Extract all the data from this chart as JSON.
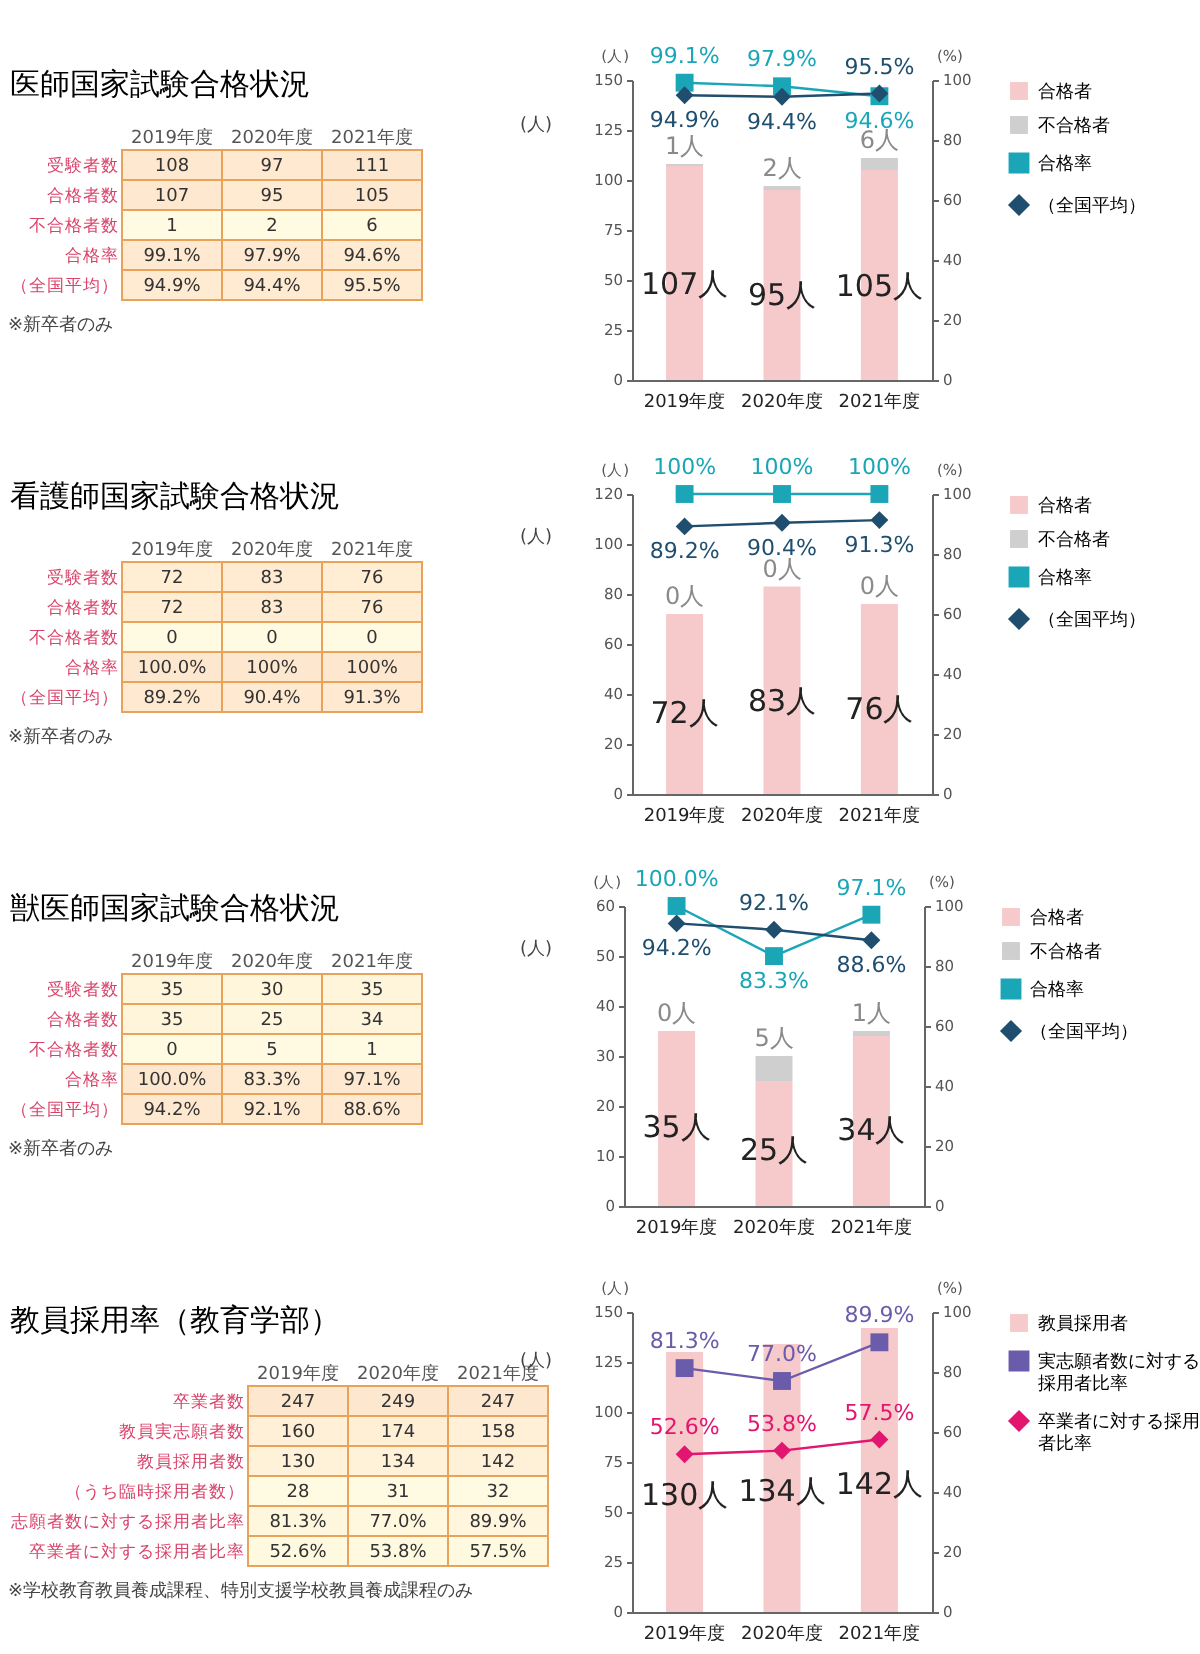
{
  "chart_data": [
    {
      "type": "heatmap",
      "title": "医師国家試験合格状況",
      "categories": [
        "2019年度",
        "2020年度",
        "2021年度"
      ],
      "y_categories": [
        "受験者数",
        "合格者数",
        "不合格者数",
        "合格率",
        "（全国平均）"
      ],
      "cells": [
        [
          108,
          97,
          111
        ],
        [
          107,
          95,
          105
        ],
        [
          1,
          2,
          6
        ],
        [
          99.1,
          97.9,
          94.6
        ],
        [
          94.9,
          94.4,
          95.5
        ]
      ],
      "cell_labels": [
        [
          "108",
          "97",
          "111"
        ],
        [
          "107",
          "95",
          "105"
        ],
        [
          "1",
          "2",
          "6"
        ],
        [
          "99.1%",
          "97.9%",
          "94.6%"
        ],
        [
          "94.9%",
          "94.4%",
          "95.5%"
        ]
      ],
      "annotations": [
        "(人)",
        "※新卒者のみ"
      ]
    },
    {
      "type": "bar",
      "stacked": true,
      "categories": [
        "2019年度",
        "2020年度",
        "2021年度"
      ],
      "ylabel": "(人)",
      "y2label": "(%)",
      "ylim": [
        0,
        150
      ],
      "yticks": [
        0,
        25,
        50,
        75,
        100,
        125,
        150
      ],
      "y2lim": [
        0,
        100
      ],
      "y2ticks": [
        0,
        20,
        40,
        60,
        80,
        100
      ],
      "legend": "right",
      "series": [
        {
          "name": "合格者",
          "type": "bar",
          "color": "#f6c9cb",
          "values": [
            107,
            95,
            105
          ],
          "value_labels": [
            "107人",
            "95人",
            "105人"
          ]
        },
        {
          "name": "不合格者",
          "type": "bar",
          "color": "#cfcfcf",
          "values": [
            1,
            2,
            6
          ],
          "value_labels": [
            "1人",
            "2人",
            "6人"
          ]
        },
        {
          "name": "合格率",
          "type": "line",
          "axis": "y2",
          "marker": "square",
          "color": "#1aa6b7",
          "values": [
            99.1,
            97.9,
            94.6
          ],
          "value_labels": [
            "99.1%",
            "97.9%",
            "94.6%"
          ]
        },
        {
          "name": "（全国平均）",
          "type": "line",
          "axis": "y2",
          "marker": "diamond",
          "color": "#1f4e6e",
          "values": [
            94.9,
            94.4,
            95.5
          ],
          "value_labels": [
            "94.9%",
            "94.4%",
            "95.5%"
          ]
        }
      ]
    },
    {
      "type": "heatmap",
      "title": "看護師国家試験合格状況",
      "categories": [
        "2019年度",
        "2020年度",
        "2021年度"
      ],
      "y_categories": [
        "受験者数",
        "合格者数",
        "不合格者数",
        "合格率",
        "（全国平均）"
      ],
      "cells": [
        [
          72,
          83,
          76
        ],
        [
          72,
          83,
          76
        ],
        [
          0,
          0,
          0
        ],
        [
          100,
          100,
          100
        ],
        [
          89.2,
          90.4,
          91.3
        ]
      ],
      "cell_labels": [
        [
          "72",
          "83",
          "76"
        ],
        [
          "72",
          "83",
          "76"
        ],
        [
          "0",
          "0",
          "0"
        ],
        [
          "100.0%",
          "100%",
          "100%"
        ],
        [
          "89.2%",
          "90.4%",
          "91.3%"
        ]
      ],
      "annotations": [
        "(人)",
        "※新卒者のみ"
      ]
    },
    {
      "type": "bar",
      "stacked": true,
      "categories": [
        "2019年度",
        "2020年度",
        "2021年度"
      ],
      "ylabel": "(人)",
      "y2label": "(%)",
      "ylim": [
        0,
        120
      ],
      "yticks": [
        0,
        20,
        40,
        60,
        80,
        100,
        120
      ],
      "y2lim": [
        0,
        100
      ],
      "y2ticks": [
        0,
        20,
        40,
        60,
        80,
        100
      ],
      "legend": "right",
      "series": [
        {
          "name": "合格者",
          "type": "bar",
          "color": "#f6c9cb",
          "values": [
            72,
            83,
            76
          ],
          "value_labels": [
            "72人",
            "83人",
            "76人"
          ]
        },
        {
          "name": "不合格者",
          "type": "bar",
          "color": "#cfcfcf",
          "values": [
            0,
            0,
            0
          ],
          "value_labels": [
            "0人",
            "0人",
            "0人"
          ]
        },
        {
          "name": "合格率",
          "type": "line",
          "axis": "y2",
          "marker": "square",
          "color": "#1aa6b7",
          "values": [
            100,
            100,
            100
          ],
          "value_labels": [
            "100%",
            "100%",
            "100%"
          ]
        },
        {
          "name": "（全国平均）",
          "type": "line",
          "axis": "y2",
          "marker": "diamond",
          "color": "#1f4e6e",
          "values": [
            89.2,
            90.4,
            91.3
          ],
          "value_labels": [
            "89.2%",
            "90.4%",
            "91.3%"
          ]
        }
      ]
    },
    {
      "type": "heatmap",
      "title": "獣医師国家試験合格状況",
      "categories": [
        "2019年度",
        "2020年度",
        "2021年度"
      ],
      "y_categories": [
        "受験者数",
        "合格者数",
        "不合格者数",
        "合格率",
        "（全国平均）"
      ],
      "cells": [
        [
          35,
          30,
          35
        ],
        [
          35,
          25,
          34
        ],
        [
          0,
          5,
          1
        ],
        [
          100,
          83.3,
          97.1
        ],
        [
          94.2,
          92.1,
          88.6
        ]
      ],
      "cell_labels": [
        [
          "35",
          "30",
          "35"
        ],
        [
          "35",
          "25",
          "34"
        ],
        [
          "0",
          "5",
          "1"
        ],
        [
          "100.0%",
          "83.3%",
          "97.1%"
        ],
        [
          "94.2%",
          "92.1%",
          "88.6%"
        ]
      ],
      "annotations": [
        "(人)",
        "※新卒者のみ"
      ]
    },
    {
      "type": "bar",
      "stacked": true,
      "categories": [
        "2019年度",
        "2020年度",
        "2021年度"
      ],
      "ylabel": "(人)",
      "y2label": "(%)",
      "ylim": [
        0,
        60
      ],
      "yticks": [
        0,
        10,
        20,
        30,
        40,
        50,
        60
      ],
      "y2lim": [
        0,
        100
      ],
      "y2ticks": [
        0,
        20,
        40,
        60,
        80,
        100
      ],
      "legend": "right",
      "series": [
        {
          "name": "合格者",
          "type": "bar",
          "color": "#f6c9cb",
          "values": [
            35,
            25,
            34
          ],
          "value_labels": [
            "35人",
            "25人",
            "34人"
          ]
        },
        {
          "name": "不合格者",
          "type": "bar",
          "color": "#cfcfcf",
          "values": [
            0,
            5,
            1
          ],
          "value_labels": [
            "0人",
            "5人",
            "1人"
          ]
        },
        {
          "name": "合格率",
          "type": "line",
          "axis": "y2",
          "marker": "square",
          "color": "#1aa6b7",
          "values": [
            100,
            83.3,
            97.1
          ],
          "value_labels": [
            "100.0%",
            "83.3%",
            "97.1%"
          ]
        },
        {
          "name": "（全国平均）",
          "type": "line",
          "axis": "y2",
          "marker": "diamond",
          "color": "#1f4e6e",
          "values": [
            94.2,
            92.1,
            88.6
          ],
          "value_labels": [
            "94.2%",
            "92.1%",
            "88.6%"
          ]
        }
      ]
    },
    {
      "type": "heatmap",
      "title": "教員採用率（教育学部）",
      "categories": [
        "2019年度",
        "2020年度",
        "2021年度"
      ],
      "y_categories": [
        "卒業者数",
        "教員実志願者数",
        "教員採用者数",
        "（うち臨時採用者数）",
        "志願者数に対する採用者比率",
        "卒業者に対する採用者比率"
      ],
      "cells": [
        [
          247,
          249,
          247
        ],
        [
          160,
          174,
          158
        ],
        [
          130,
          134,
          142
        ],
        [
          28,
          31,
          32
        ],
        [
          81.3,
          77.0,
          89.9
        ],
        [
          52.6,
          53.8,
          57.5
        ]
      ],
      "cell_labels": [
        [
          "247",
          "249",
          "247"
        ],
        [
          "160",
          "174",
          "158"
        ],
        [
          "130",
          "134",
          "142"
        ],
        [
          "28",
          "31",
          "32"
        ],
        [
          "81.3%",
          "77.0%",
          "89.9%"
        ],
        [
          "52.6%",
          "53.8%",
          "57.5%"
        ]
      ],
      "annotations": [
        "(人)",
        "※学校教育教員養成課程、特別支援学校教員養成課程のみ"
      ]
    },
    {
      "type": "bar",
      "categories": [
        "2019年度",
        "2020年度",
        "2021年度"
      ],
      "ylabel": "(人)",
      "y2label": "(%)",
      "ylim": [
        0,
        150
      ],
      "yticks": [
        0,
        25,
        50,
        75,
        100,
        125,
        150
      ],
      "y2lim": [
        0,
        100
      ],
      "y2ticks": [
        0,
        20,
        40,
        60,
        80,
        100
      ],
      "legend": "right",
      "series": [
        {
          "name": "教員採用者",
          "type": "bar",
          "color": "#f6c9cb",
          "values": [
            130,
            134,
            142
          ],
          "value_labels": [
            "130人",
            "134人",
            "142人"
          ]
        },
        {
          "name": "実志願者数に対する採用者比率",
          "type": "line",
          "axis": "y2",
          "marker": "square",
          "color": "#6b5bab",
          "values": [
            81.3,
            77.0,
            89.9
          ],
          "value_labels": [
            "81.3%",
            "77.0%",
            "89.9%"
          ]
        },
        {
          "name": "卒業者に対する採用者比率",
          "type": "line",
          "axis": "y2",
          "marker": "diamond",
          "color": "#e3166f",
          "values": [
            52.6,
            53.8,
            57.5
          ],
          "value_labels": [
            "52.6%",
            "53.8%",
            "57.5%"
          ]
        }
      ]
    }
  ]
}
